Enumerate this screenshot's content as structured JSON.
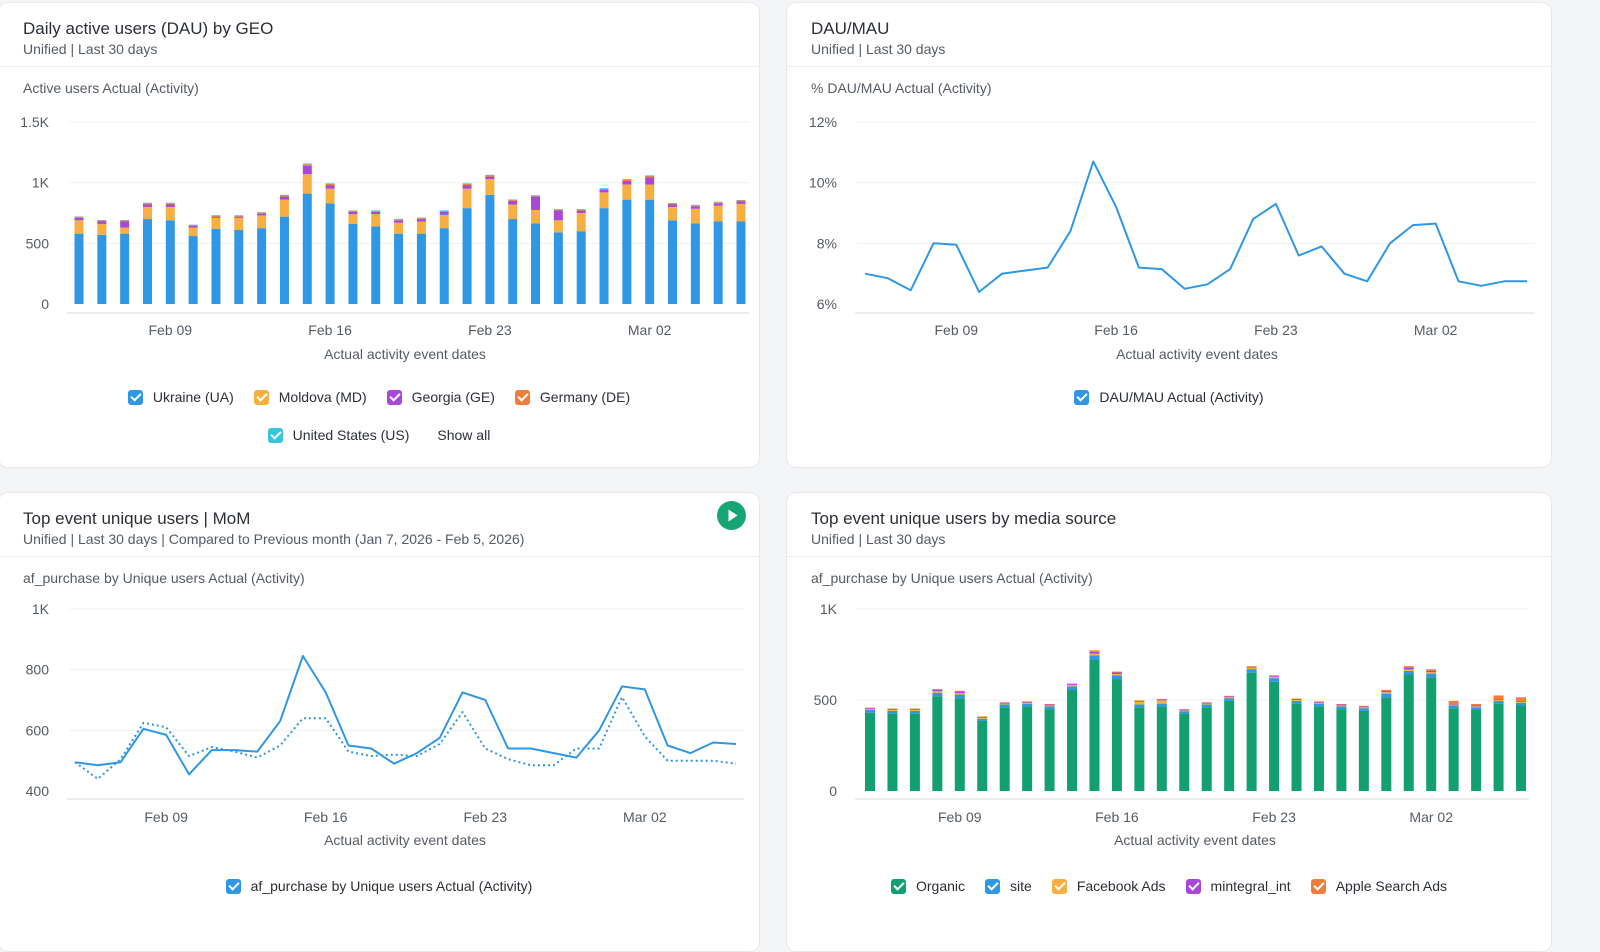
{
  "cards": {
    "dau_geo": {
      "title": "Daily active users (DAU) by GEO",
      "subtitle": "Unified | Last 30 days",
      "chart_label": "Active users Actual (Activity)",
      "x_title": "Actual activity event dates",
      "show_all": "Show all"
    },
    "dau_mau": {
      "title": "DAU/MAU",
      "subtitle": "Unified | Last 30 days",
      "chart_label": "% DAU/MAU Actual (Activity)",
      "x_title": "Actual activity event dates"
    },
    "top_event_mom": {
      "title": "Top event unique users | MoM",
      "subtitle": "Unified | Last 30 days | Compared to Previous month (Jan 7, 2026 - Feb 5, 2026)",
      "chart_label": "af_purchase by Unique users Actual (Activity)",
      "x_title": "Actual activity event dates"
    },
    "media_source": {
      "title": "Top event unique users by media source",
      "subtitle": "Unified | Last 30 days",
      "chart_label": "af_purchase by Unique users Actual (Activity)",
      "x_title": "Actual activity event dates"
    }
  },
  "icons": {
    "play": "play-icon",
    "checkbox": "checkbox-checked-icon"
  },
  "chart_data": [
    {
      "id": "dau_geo",
      "type": "bar",
      "stacked": true,
      "ylim": [
        0,
        1500
      ],
      "y_ticks": [
        0,
        500,
        1000,
        1500
      ],
      "y_tick_labels": [
        "0",
        "500",
        "1K",
        "1.5K"
      ],
      "x_tick_labels": [
        "Feb 09",
        "Feb 16",
        "Feb 23",
        "Mar 02"
      ],
      "x_tick_index": [
        4,
        11,
        18,
        25
      ],
      "grid": true,
      "legend_position": "bottom",
      "series": [
        {
          "name": "Ukraine (UA)",
          "color": "#2f97e3",
          "values": [
            580,
            570,
            580,
            700,
            690,
            560,
            620,
            610,
            625,
            720,
            910,
            830,
            660,
            640,
            580,
            580,
            625,
            790,
            900,
            700,
            665,
            590,
            600,
            790,
            860,
            860,
            690,
            665,
            680,
            680
          ]
        },
        {
          "name": "Moldova (MD)",
          "color": "#f5b041",
          "values": [
            110,
            90,
            50,
            100,
            110,
            70,
            90,
            100,
            105,
            140,
            160,
            120,
            80,
            100,
            90,
            100,
            110,
            160,
            130,
            120,
            110,
            100,
            150,
            130,
            125,
            125,
            110,
            120,
            130,
            145
          ]
        },
        {
          "name": "Georgia (GE)",
          "color": "#a848d6",
          "values": [
            20,
            20,
            50,
            20,
            20,
            15,
            10,
            10,
            15,
            25,
            70,
            30,
            20,
            20,
            20,
            20,
            25,
            30,
            20,
            30,
            110,
            80,
            20,
            20,
            30,
            60,
            20,
            20,
            20,
            20
          ]
        },
        {
          "name": "Germany (DE)",
          "color": "#ef7d3c",
          "values": [
            8,
            8,
            8,
            10,
            10,
            6,
            8,
            8,
            8,
            10,
            12,
            10,
            8,
            8,
            8,
            8,
            8,
            10,
            10,
            8,
            8,
            8,
            8,
            10,
            10,
            10,
            8,
            8,
            8,
            8
          ]
        },
        {
          "name": "United States (US)",
          "color": "#35c7d9",
          "values": [
            4,
            4,
            4,
            5,
            5,
            3,
            4,
            4,
            4,
            5,
            6,
            5,
            4,
            4,
            4,
            4,
            4,
            5,
            5,
            4,
            4,
            4,
            4,
            5,
            5,
            5,
            4,
            4,
            4,
            4
          ]
        }
      ]
    },
    {
      "id": "dau_mau",
      "type": "line",
      "ylim": [
        6,
        12
      ],
      "y_ticks": [
        6,
        8,
        10,
        12
      ],
      "y_tick_labels": [
        "6%",
        "8%",
        "10%",
        "12%"
      ],
      "x_tick_labels": [
        "Feb 09",
        "Feb 16",
        "Feb 23",
        "Mar 02"
      ],
      "x_tick_index": [
        4,
        11,
        18,
        25
      ],
      "grid": true,
      "legend_position": "bottom",
      "series": [
        {
          "name": "DAU/MAU Actual (Activity)",
          "color": "#2f97e3",
          "values": [
            7.0,
            6.85,
            6.45,
            8.0,
            7.95,
            6.4,
            7.0,
            7.1,
            7.2,
            8.4,
            10.7,
            9.2,
            7.2,
            7.15,
            6.5,
            6.65,
            7.15,
            8.8,
            9.3,
            7.6,
            7.9,
            7.0,
            6.75,
            8.0,
            8.6,
            8.65,
            6.75,
            6.6,
            6.75,
            6.75
          ]
        }
      ]
    },
    {
      "id": "top_event_mom",
      "type": "line",
      "ylim": [
        400,
        1000
      ],
      "y_ticks": [
        400,
        600,
        800,
        1000
      ],
      "y_tick_labels": [
        "400",
        "600",
        "800",
        "1K"
      ],
      "x_tick_labels": [
        "Feb 09",
        "Feb 16",
        "Feb 23",
        "Mar 02"
      ],
      "x_tick_index": [
        4,
        11,
        18,
        25
      ],
      "grid": true,
      "legend_position": "bottom",
      "series": [
        {
          "name": "af_purchase by Unique users Actual (Activity)",
          "color": "#2f97e3",
          "values": [
            495,
            485,
            495,
            605,
            585,
            455,
            535,
            535,
            530,
            630,
            845,
            725,
            550,
            540,
            490,
            525,
            575,
            725,
            700,
            540,
            540,
            525,
            510,
            600,
            745,
            735,
            550,
            525,
            560,
            555
          ]
        },
        {
          "name": "",
          "color": "#2f97e3",
          "dashed": true,
          "values": [
            495,
            440,
            505,
            625,
            610,
            515,
            545,
            530,
            510,
            550,
            640,
            640,
            530,
            515,
            520,
            515,
            555,
            660,
            540,
            505,
            485,
            485,
            540,
            540,
            710,
            580,
            500,
            500,
            500,
            490
          ]
        }
      ]
    },
    {
      "id": "media_source",
      "type": "bar",
      "stacked": true,
      "ylim": [
        0,
        1000
      ],
      "y_ticks": [
        0,
        500,
        1000
      ],
      "y_tick_labels": [
        "0",
        "500",
        "1K"
      ],
      "x_tick_labels": [
        "Feb 09",
        "Feb 16",
        "Feb 23",
        "Mar 02"
      ],
      "x_tick_index": [
        4,
        11,
        18,
        25
      ],
      "grid": true,
      "legend_position": "bottom",
      "series": [
        {
          "name": "Organic",
          "color": "#12a06e",
          "values": [
            430,
            425,
            425,
            520,
            510,
            385,
            460,
            465,
            450,
            555,
            720,
            615,
            460,
            465,
            425,
            460,
            495,
            650,
            600,
            480,
            465,
            450,
            440,
            515,
            640,
            625,
            455,
            445,
            480,
            470
          ]
        },
        {
          "name": "site",
          "color": "#2f97e3",
          "values": [
            15,
            15,
            15,
            20,
            20,
            12,
            15,
            15,
            15,
            20,
            25,
            20,
            15,
            15,
            12,
            15,
            15,
            20,
            20,
            15,
            15,
            15,
            15,
            20,
            20,
            20,
            15,
            15,
            15,
            15
          ]
        },
        {
          "name": "Facebook Ads",
          "color": "#f5b041",
          "values": [
            5,
            5,
            5,
            8,
            8,
            5,
            5,
            5,
            5,
            8,
            10,
            8,
            15,
            18,
            5,
            5,
            5,
            8,
            8,
            5,
            5,
            5,
            5,
            8,
            8,
            8,
            5,
            5,
            5,
            5
          ]
        },
        {
          "name": "mintegral_int",
          "color": "#a848d6",
          "values": [
            5,
            5,
            5,
            8,
            8,
            5,
            5,
            5,
            5,
            5,
            10,
            8,
            5,
            5,
            5,
            5,
            5,
            5,
            5,
            5,
            5,
            5,
            5,
            8,
            10,
            8,
            5,
            5,
            5,
            5
          ]
        },
        {
          "name": "Apple Search Ads",
          "color": "#ef7d3c",
          "values": [
            3,
            3,
            3,
            5,
            5,
            3,
            3,
            3,
            3,
            3,
            8,
            5,
            3,
            3,
            3,
            3,
            3,
            3,
            3,
            3,
            3,
            3,
            3,
            5,
            8,
            8,
            15,
            8,
            20,
            20
          ]
        }
      ]
    }
  ]
}
